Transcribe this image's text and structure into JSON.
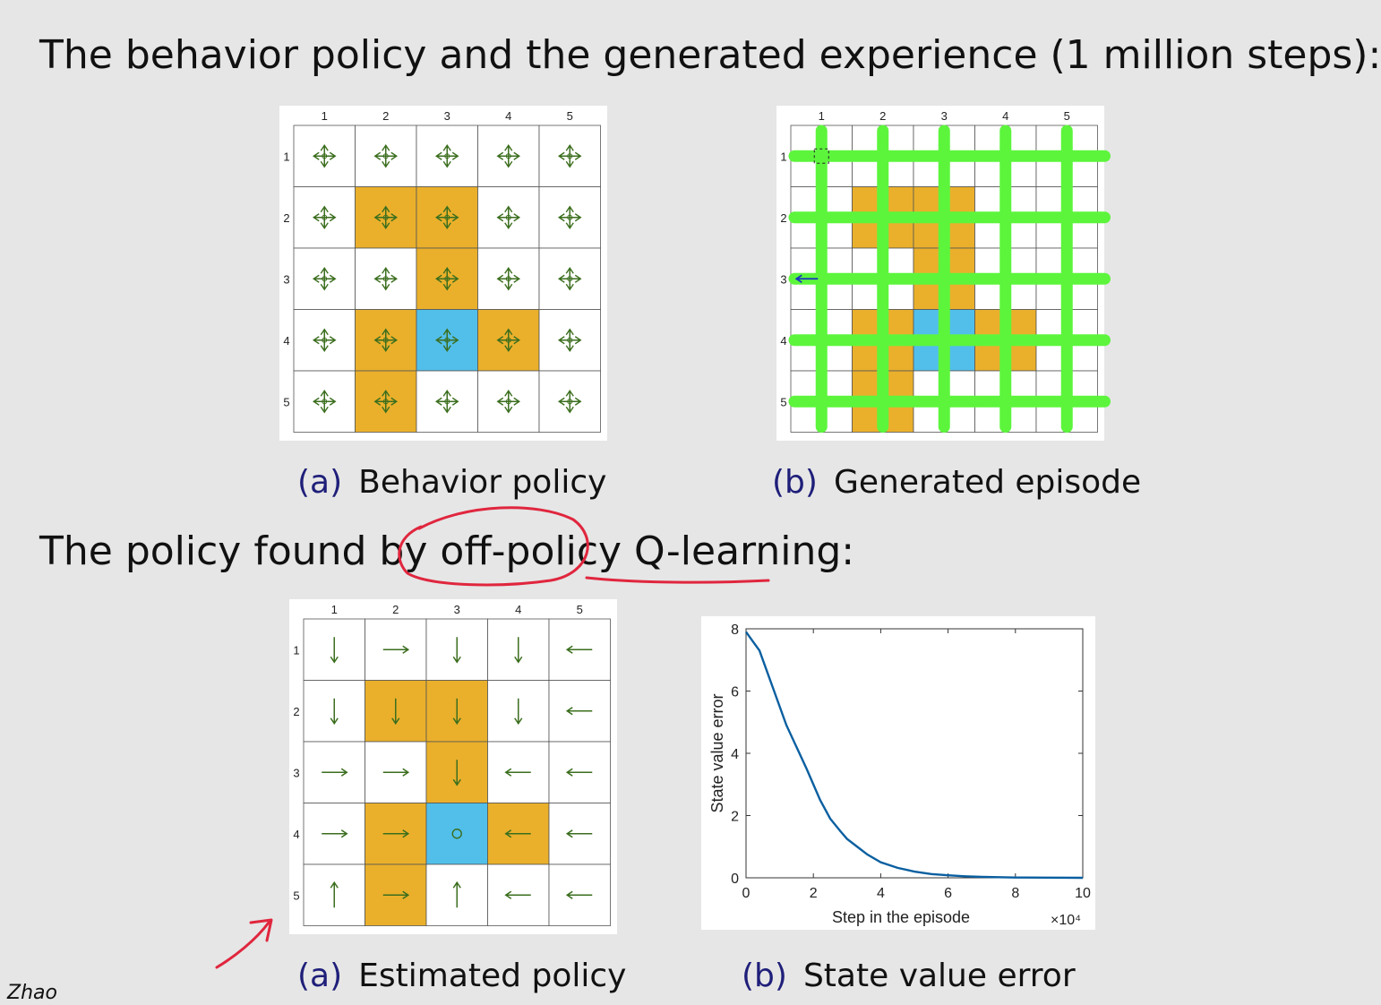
{
  "headings": {
    "experience": "The behavior policy and the generated experience (1 million steps):",
    "found_prefix": "The policy found by",
    "found_emph": "off-policy",
    "found_suffix": "Q-learning:"
  },
  "grid": {
    "size": 5,
    "col_labels": [
      "1",
      "2",
      "3",
      "4",
      "5"
    ],
    "row_labels": [
      "1",
      "2",
      "3",
      "4",
      "5"
    ],
    "forbidden_cells": [
      [
        2,
        2
      ],
      [
        2,
        3
      ],
      [
        3,
        3
      ],
      [
        4,
        2
      ],
      [
        4,
        4
      ],
      [
        5,
        2
      ]
    ],
    "target_cell": [
      4,
      3
    ]
  },
  "captions": {
    "behavior": {
      "label": "(a)",
      "text": "Behavior policy"
    },
    "episode": {
      "label": "(b)",
      "text": "Generated episode"
    },
    "estimated": {
      "label": "(a)",
      "text": "Estimated policy"
    },
    "error": {
      "label": "(b)",
      "text": "State value error"
    }
  },
  "estimated_policy": [
    [
      "down",
      "right",
      "down",
      "down",
      "left"
    ],
    [
      "down",
      "down",
      "down",
      "down",
      "left"
    ],
    [
      "right",
      "right",
      "down",
      "left",
      "left"
    ],
    [
      "right",
      "right",
      "stay",
      "left",
      "left"
    ],
    [
      "up",
      "right",
      "up",
      "left",
      "left"
    ]
  ],
  "chart_data": {
    "type": "line",
    "title": "",
    "xlabel": "Step in the episode",
    "ylabel": "State value error",
    "x_multiplier": "×10⁴",
    "xlim": [
      0,
      10
    ],
    "ylim": [
      0,
      8
    ],
    "xticks": [
      0,
      2,
      4,
      6,
      8,
      10
    ],
    "yticks": [
      0,
      2,
      4,
      6,
      8
    ],
    "x": [
      0,
      0.2,
      0.4,
      0.6,
      0.8,
      1,
      1.2,
      1.5,
      1.8,
      2,
      2.2,
      2.5,
      2.8,
      3,
      3.3,
      3.6,
      4,
      4.5,
      5,
      5.5,
      6,
      6.5,
      7,
      8,
      9,
      10
    ],
    "y": [
      7.9,
      7.6,
      7.3,
      6.7,
      6.1,
      5.5,
      4.9,
      4.2,
      3.5,
      3.0,
      2.5,
      1.9,
      1.5,
      1.25,
      1.0,
      0.75,
      0.5,
      0.32,
      0.2,
      0.12,
      0.08,
      0.05,
      0.03,
      0.01,
      0.005,
      0.0
    ]
  },
  "author": "Zhao",
  "colors": {
    "forbidden": "#eab02b",
    "target": "#52bfea",
    "arrow": "#3b6e1e",
    "episode": "#5cf53c",
    "curve": "#0a5fa0",
    "annotation": "#e0263e"
  }
}
